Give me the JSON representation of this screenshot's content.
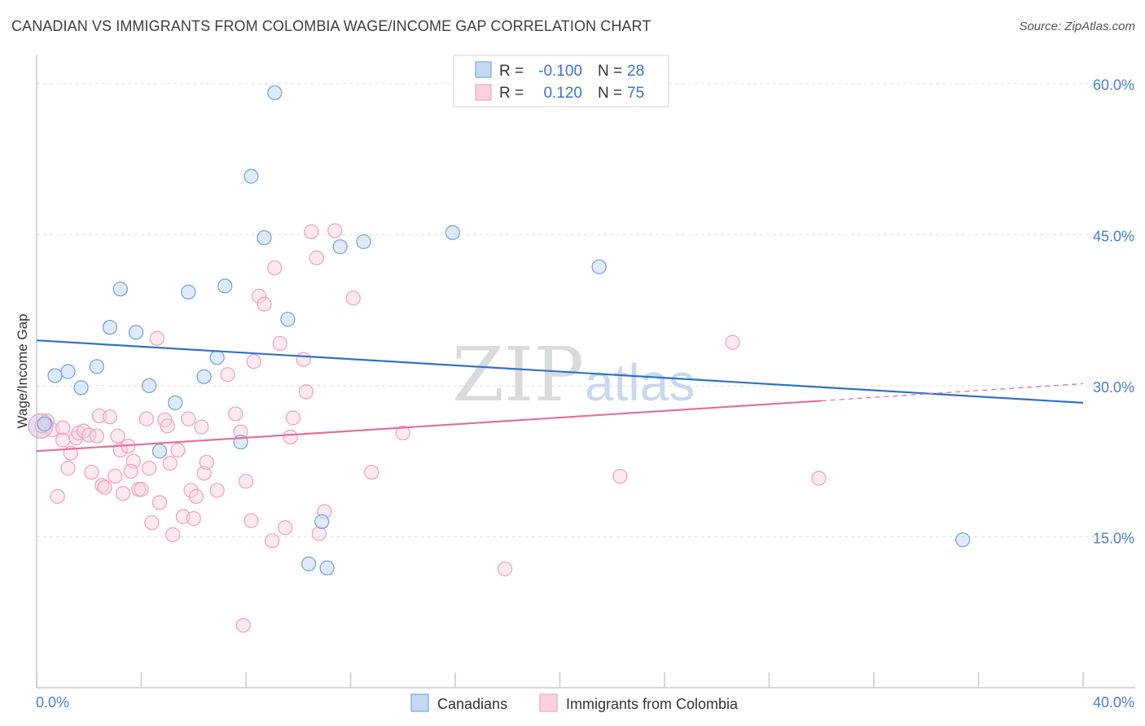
{
  "chart_data": {
    "type": "scatter",
    "title": "CANADIAN VS IMMIGRANTS FROM COLOMBIA WAGE/INCOME GAP CORRELATION CHART",
    "source": "Source: ZipAtlas.com",
    "xlabel": "",
    "ylabel": "Wage/Income Gap",
    "xlim": [
      0,
      40
    ],
    "ylim": [
      0,
      62
    ],
    "x_tick_labels": [
      "0.0%",
      "40.0%"
    ],
    "y_ticks": [
      {
        "value": 15,
        "label": "15.0%"
      },
      {
        "value": 30,
        "label": "30.0%"
      },
      {
        "value": 45,
        "label": "45.0%"
      },
      {
        "value": 60,
        "label": "60.0%"
      }
    ],
    "watermark": {
      "part1": "ZIP",
      "part2": "atlas"
    },
    "legend": {
      "r_label": "R =",
      "n_label": "N =",
      "entries": [
        {
          "r": "-0.100",
          "n": "28"
        },
        {
          "r": "0.120",
          "n": "75"
        }
      ]
    },
    "series": [
      {
        "name": "Canadians",
        "color": "#7aa6e0",
        "line_color": "#3370c8",
        "trend": {
          "x0": 0,
          "y0": 34.5,
          "x1": 40,
          "y1": 28.3
        },
        "points": [
          [
            0.3,
            26.2
          ],
          [
            0.7,
            31.0
          ],
          [
            1.2,
            31.4
          ],
          [
            1.7,
            29.8
          ],
          [
            2.3,
            31.9
          ],
          [
            2.8,
            35.8
          ],
          [
            3.2,
            39.6
          ],
          [
            3.8,
            35.3
          ],
          [
            4.3,
            30.0
          ],
          [
            4.7,
            23.5
          ],
          [
            5.3,
            28.3
          ],
          [
            5.8,
            39.3
          ],
          [
            6.4,
            30.9
          ],
          [
            6.9,
            32.8
          ],
          [
            7.2,
            39.9
          ],
          [
            7.8,
            24.4
          ],
          [
            8.2,
            50.8
          ],
          [
            8.7,
            44.7
          ],
          [
            9.1,
            59.1
          ],
          [
            9.6,
            36.6
          ],
          [
            10.4,
            12.3
          ],
          [
            10.9,
            16.5
          ],
          [
            11.1,
            11.9
          ],
          [
            11.6,
            43.8
          ],
          [
            12.5,
            44.3
          ],
          [
            15.9,
            45.2
          ],
          [
            21.5,
            41.8
          ],
          [
            35.4,
            14.7
          ]
        ]
      },
      {
        "name": "Immigrants from Colombia",
        "color": "#f0a4bf",
        "line_color": "#e2719a",
        "trend": {
          "x0": 0,
          "y0": 23.5,
          "x1": 30,
          "y1": 28.5
        },
        "trend_dashed": {
          "x0": 30,
          "y0": 28.5,
          "x1": 40,
          "y1": 30.2
        },
        "points": [
          [
            0.2,
            26.0
          ],
          [
            0.4,
            26.5
          ],
          [
            0.6,
            25.6
          ],
          [
            0.8,
            19.0
          ],
          [
            1.0,
            25.8
          ],
          [
            1.2,
            21.8
          ],
          [
            1.3,
            23.3
          ],
          [
            1.5,
            24.8
          ],
          [
            1.6,
            25.3
          ],
          [
            1.8,
            25.5
          ],
          [
            2.0,
            25.1
          ],
          [
            2.1,
            21.4
          ],
          [
            2.3,
            25.0
          ],
          [
            2.4,
            27.0
          ],
          [
            2.5,
            20.1
          ],
          [
            2.6,
            19.9
          ],
          [
            2.8,
            26.9
          ],
          [
            3.0,
            21.0
          ],
          [
            3.1,
            25.0
          ],
          [
            3.2,
            23.6
          ],
          [
            3.3,
            19.3
          ],
          [
            3.5,
            24.0
          ],
          [
            3.7,
            22.5
          ],
          [
            3.9,
            19.7
          ],
          [
            4.0,
            19.7
          ],
          [
            4.2,
            26.7
          ],
          [
            4.3,
            21.8
          ],
          [
            4.4,
            16.4
          ],
          [
            4.6,
            34.7
          ],
          [
            4.7,
            18.4
          ],
          [
            4.9,
            26.6
          ],
          [
            5.0,
            26.0
          ],
          [
            5.1,
            22.3
          ],
          [
            5.2,
            15.2
          ],
          [
            5.4,
            23.6
          ],
          [
            5.6,
            17.0
          ],
          [
            5.8,
            26.7
          ],
          [
            5.9,
            19.6
          ],
          [
            6.0,
            16.8
          ],
          [
            6.1,
            19.0
          ],
          [
            6.3,
            25.9
          ],
          [
            6.4,
            21.3
          ],
          [
            6.5,
            22.4
          ],
          [
            6.9,
            19.6
          ],
          [
            7.3,
            31.1
          ],
          [
            7.6,
            27.2
          ],
          [
            7.8,
            25.4
          ],
          [
            8.0,
            20.5
          ],
          [
            8.2,
            16.6
          ],
          [
            8.3,
            32.4
          ],
          [
            8.5,
            38.9
          ],
          [
            8.7,
            38.1
          ],
          [
            7.9,
            6.2
          ],
          [
            9.0,
            14.6
          ],
          [
            9.1,
            41.7
          ],
          [
            9.3,
            34.2
          ],
          [
            9.5,
            15.9
          ],
          [
            9.7,
            24.9
          ],
          [
            9.8,
            26.8
          ],
          [
            10.2,
            32.6
          ],
          [
            10.3,
            29.4
          ],
          [
            10.5,
            45.3
          ],
          [
            10.7,
            42.7
          ],
          [
            10.8,
            15.3
          ],
          [
            11.0,
            17.5
          ],
          [
            11.4,
            45.4
          ],
          [
            12.1,
            38.7
          ],
          [
            12.8,
            21.4
          ],
          [
            14.0,
            25.3
          ],
          [
            17.9,
            11.8
          ],
          [
            22.3,
            21.0
          ],
          [
            26.6,
            34.3
          ],
          [
            29.9,
            20.8
          ],
          [
            1.0,
            24.6
          ],
          [
            3.6,
            21.5
          ]
        ]
      }
    ]
  }
}
